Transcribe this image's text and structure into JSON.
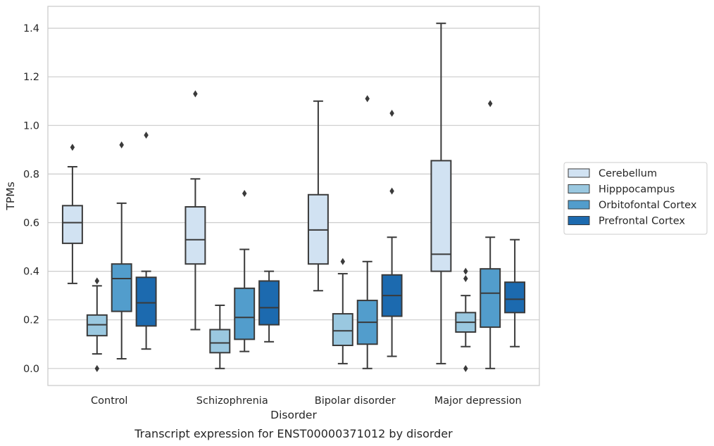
{
  "chart_data": {
    "type": "box",
    "title": "",
    "xlabel": "Disorder",
    "ylabel": "TPMs",
    "caption": "Transcript expression for ENST00000371012 by disorder",
    "ylim": [
      -0.07,
      1.49
    ],
    "yticks": [
      "0.0",
      "0.2",
      "0.4",
      "0.6",
      "0.8",
      "1.0",
      "1.2",
      "1.4"
    ],
    "grid": "horizontal",
    "legend_position": "right",
    "categories": [
      "Control",
      "Schizophrenia",
      "Bipolar disorder",
      "Major depression"
    ],
    "series": [
      {
        "name": "Cerebellum",
        "color": "#d1e2f2",
        "boxes": [
          {
            "whisker_low": 0.35,
            "q1": 0.515,
            "median": 0.6,
            "q3": 0.67,
            "whisker_high": 0.83,
            "outliers": [
              0.91
            ]
          },
          {
            "whisker_low": 0.16,
            "q1": 0.43,
            "median": 0.53,
            "q3": 0.665,
            "whisker_high": 0.78,
            "outliers": [
              1.13
            ]
          },
          {
            "whisker_low": 0.32,
            "q1": 0.43,
            "median": 0.57,
            "q3": 0.715,
            "whisker_high": 1.1,
            "outliers": []
          },
          {
            "whisker_low": 0.02,
            "q1": 0.4,
            "median": 0.47,
            "q3": 0.855,
            "whisker_high": 1.42,
            "outliers": []
          }
        ]
      },
      {
        "name": "Hipppocampus",
        "color": "#9ac8e0",
        "boxes": [
          {
            "whisker_low": 0.06,
            "q1": 0.135,
            "median": 0.18,
            "q3": 0.22,
            "whisker_high": 0.34,
            "outliers": [
              0.0,
              0.36
            ]
          },
          {
            "whisker_low": 0.0,
            "q1": 0.065,
            "median": 0.105,
            "q3": 0.16,
            "whisker_high": 0.26,
            "outliers": []
          },
          {
            "whisker_low": 0.02,
            "q1": 0.095,
            "median": 0.155,
            "q3": 0.225,
            "whisker_high": 0.39,
            "outliers": [
              0.44
            ]
          },
          {
            "whisker_low": 0.09,
            "q1": 0.15,
            "median": 0.19,
            "q3": 0.23,
            "whisker_high": 0.3,
            "outliers": [
              0.0,
              0.37,
              0.4
            ]
          }
        ]
      },
      {
        "name": "Orbitofontal Cortex",
        "color": "#529dcc",
        "boxes": [
          {
            "whisker_low": 0.04,
            "q1": 0.235,
            "median": 0.37,
            "q3": 0.43,
            "whisker_high": 0.68,
            "outliers": [
              0.92
            ]
          },
          {
            "whisker_low": 0.07,
            "q1": 0.12,
            "median": 0.21,
            "q3": 0.33,
            "whisker_high": 0.49,
            "outliers": [
              0.72
            ]
          },
          {
            "whisker_low": 0.0,
            "q1": 0.1,
            "median": 0.19,
            "q3": 0.28,
            "whisker_high": 0.44,
            "outliers": [
              1.11
            ]
          },
          {
            "whisker_low": 0.0,
            "q1": 0.17,
            "median": 0.31,
            "q3": 0.41,
            "whisker_high": 0.54,
            "outliers": [
              1.09
            ]
          }
        ]
      },
      {
        "name": "Prefrontal Cortex",
        "color": "#1c6aaf",
        "boxes": [
          {
            "whisker_low": 0.08,
            "q1": 0.175,
            "median": 0.27,
            "q3": 0.375,
            "whisker_high": 0.4,
            "outliers": [
              0.96
            ]
          },
          {
            "whisker_low": 0.11,
            "q1": 0.18,
            "median": 0.25,
            "q3": 0.36,
            "whisker_high": 0.4,
            "outliers": []
          },
          {
            "whisker_low": 0.05,
            "q1": 0.215,
            "median": 0.3,
            "q3": 0.385,
            "whisker_high": 0.54,
            "outliers": [
              0.73,
              1.05
            ]
          },
          {
            "whisker_low": 0.09,
            "q1": 0.23,
            "median": 0.285,
            "q3": 0.355,
            "whisker_high": 0.53,
            "outliers": []
          }
        ]
      }
    ]
  }
}
